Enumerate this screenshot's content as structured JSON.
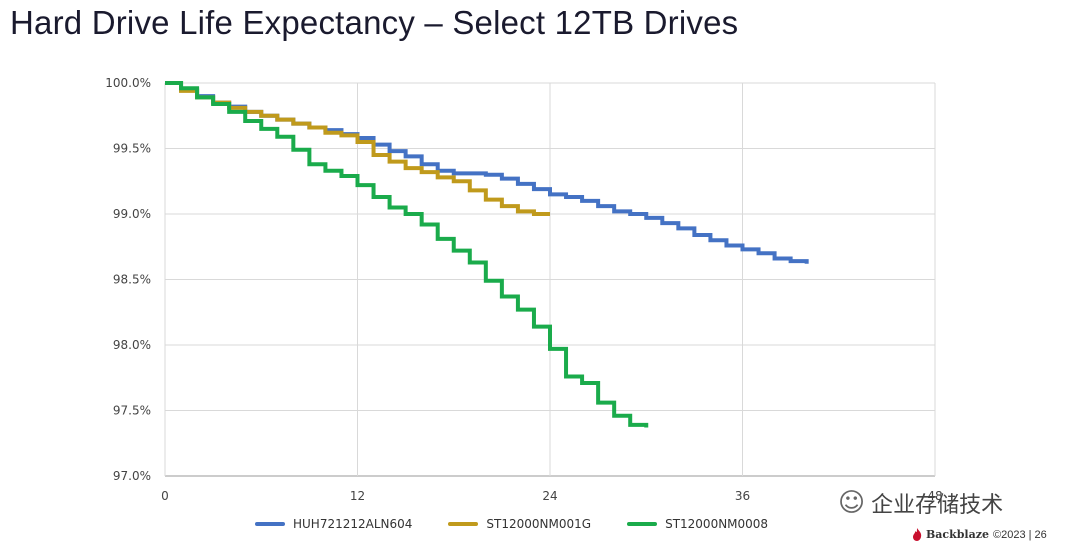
{
  "title": "Hard Drive Life Expectancy – Select 12TB Drives",
  "watermark": {
    "text": "企业存储技术",
    "icon": "wechat-icon"
  },
  "footer": {
    "brand": "Backblaze",
    "copyright": "©2023 | 26",
    "brand_color": "#c8102e"
  },
  "chart_data": {
    "type": "line",
    "xlabel": "",
    "ylabel": "",
    "xlim": [
      0,
      48
    ],
    "ylim": [
      97.0,
      100.0
    ],
    "x_ticks": [
      0,
      12,
      24,
      36,
      48
    ],
    "x_tick_labels": [
      "0",
      "12",
      "24",
      "36",
      "48"
    ],
    "y_ticks": [
      97.0,
      97.5,
      98.0,
      98.5,
      99.0,
      99.5,
      100.0
    ],
    "y_tick_labels": [
      "97.0%",
      "97.5%",
      "98.0%",
      "98.5%",
      "99.0%",
      "99.5%",
      "100.0%"
    ],
    "grid": true,
    "legend": "bottom",
    "series": [
      {
        "name": "HUH721212ALN604",
        "color": "#4472c4",
        "step": true,
        "x": [
          0,
          1,
          2,
          3,
          4,
          5,
          6,
          7,
          8,
          9,
          10,
          11,
          12,
          13,
          14,
          15,
          16,
          17,
          18,
          19,
          20,
          21,
          22,
          23,
          24,
          25,
          26,
          27,
          28,
          29,
          30,
          31,
          32,
          33,
          34,
          35,
          36,
          37,
          38,
          39,
          40
        ],
        "y": [
          100.0,
          99.95,
          99.9,
          99.85,
          99.82,
          99.78,
          99.75,
          99.72,
          99.69,
          99.66,
          99.64,
          99.61,
          99.58,
          99.53,
          99.48,
          99.44,
          99.38,
          99.33,
          99.31,
          99.31,
          99.3,
          99.27,
          99.23,
          99.19,
          99.15,
          99.13,
          99.1,
          99.06,
          99.02,
          99.0,
          98.97,
          98.93,
          98.89,
          98.84,
          98.8,
          98.76,
          98.73,
          98.7,
          98.66,
          98.64,
          98.62
        ]
      },
      {
        "name": "ST12000NM001G",
        "color": "#c09a1c",
        "step": true,
        "x": [
          0,
          1,
          2,
          3,
          4,
          5,
          6,
          7,
          8,
          9,
          10,
          11,
          12,
          13,
          14,
          15,
          16,
          17,
          18,
          19,
          20,
          21,
          22,
          23,
          24
        ],
        "y": [
          100.0,
          99.94,
          99.89,
          99.85,
          99.81,
          99.78,
          99.75,
          99.72,
          99.69,
          99.66,
          99.62,
          99.6,
          99.55,
          99.45,
          99.4,
          99.35,
          99.32,
          99.28,
          99.25,
          99.18,
          99.11,
          99.06,
          99.02,
          99.0,
          99.0
        ]
      },
      {
        "name": "ST12000NM0008",
        "color": "#1aab4b",
        "step": true,
        "x": [
          0,
          1,
          2,
          3,
          4,
          5,
          6,
          7,
          8,
          9,
          10,
          11,
          12,
          13,
          14,
          15,
          16,
          17,
          18,
          19,
          20,
          21,
          22,
          23,
          24,
          25,
          26,
          27,
          28,
          29,
          30
        ],
        "y": [
          100.0,
          99.96,
          99.89,
          99.84,
          99.78,
          99.71,
          99.65,
          99.59,
          99.49,
          99.38,
          99.33,
          99.29,
          99.22,
          99.13,
          99.05,
          99.0,
          98.92,
          98.81,
          98.72,
          98.63,
          98.49,
          98.37,
          98.27,
          98.14,
          97.97,
          97.76,
          97.71,
          97.56,
          97.46,
          97.39,
          97.37
        ]
      }
    ]
  }
}
